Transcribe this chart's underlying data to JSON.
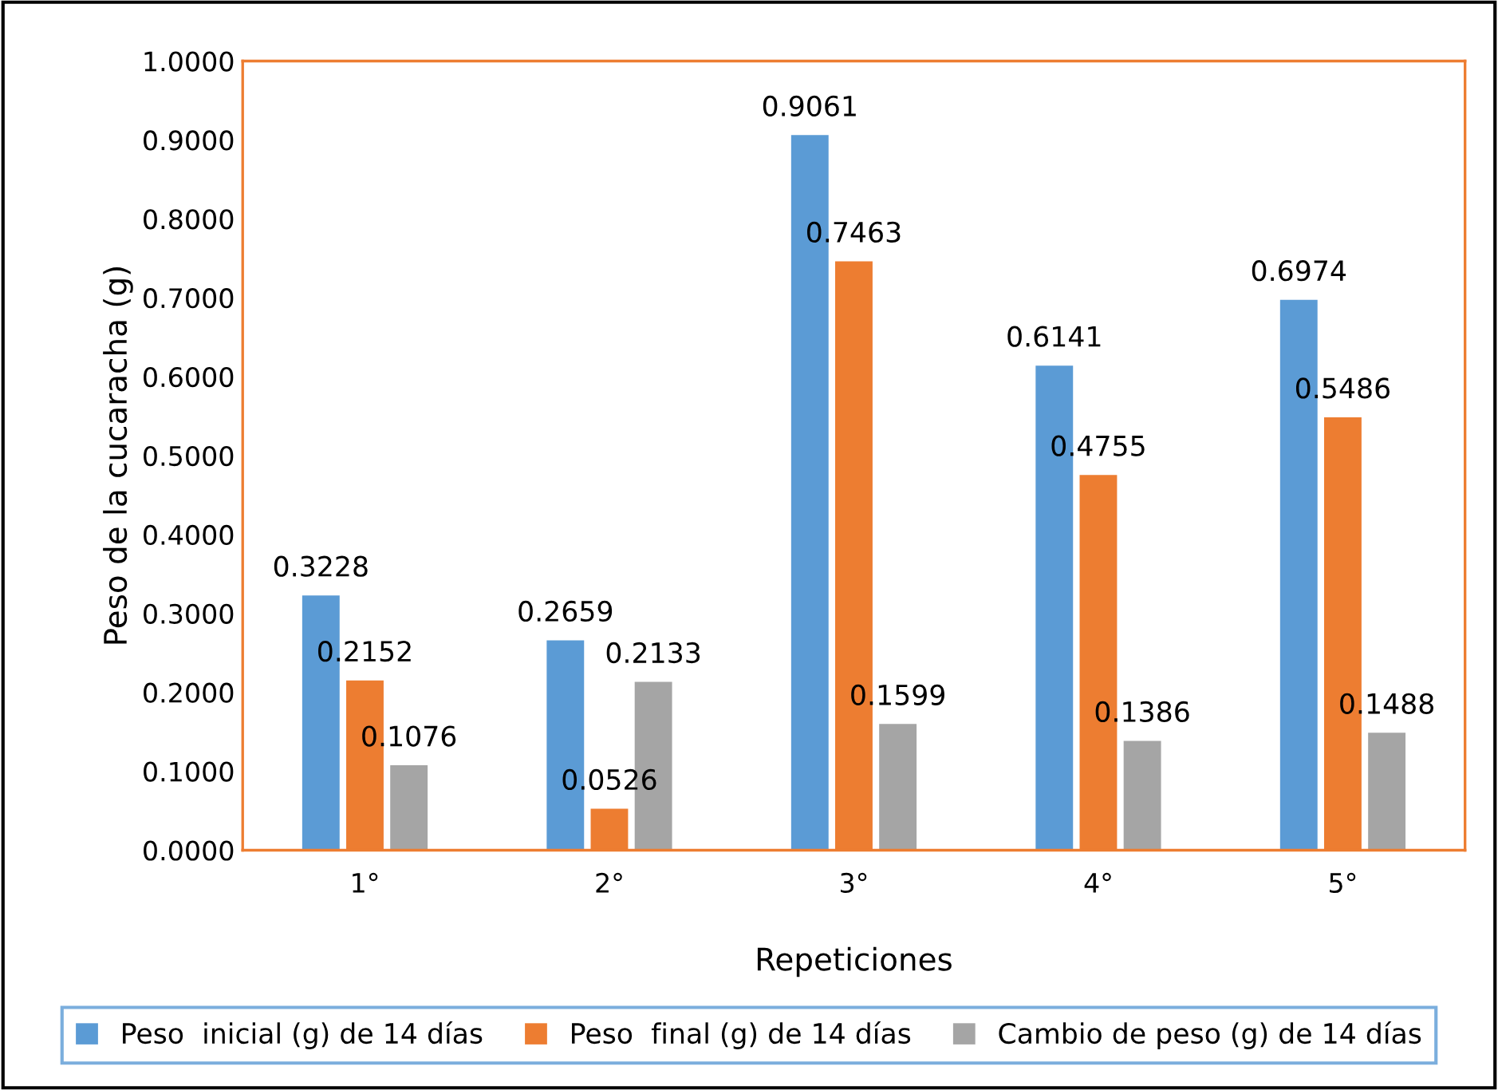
{
  "chart_data": {
    "type": "bar",
    "xlabel": "Repeticiones",
    "ylabel": "Peso de la cucaracha (g)",
    "categories": [
      "1°",
      "2°",
      "3°",
      "4°",
      "5°"
    ],
    "series": [
      {
        "name": "Peso  inicial (g) de 14 días",
        "color": "#5b9bd5",
        "values": [
          0.3228,
          0.2659,
          0.9061,
          0.6141,
          0.6974
        ]
      },
      {
        "name": "Peso  final (g) de 14 días",
        "color": "#ed7d31",
        "values": [
          0.2152,
          0.0526,
          0.7463,
          0.4755,
          0.5486
        ]
      },
      {
        "name": "Cambio de peso (g) de 14 días",
        "color": "#a5a5a5",
        "values": [
          0.1076,
          0.2133,
          0.1599,
          0.1386,
          0.1488
        ]
      }
    ],
    "ylim": [
      0,
      1
    ],
    "yticks": [
      {
        "value": 0,
        "label": "0.0000"
      },
      {
        "value": 0.1,
        "label": "0.1000"
      },
      {
        "value": 0.2,
        "label": "0.2000"
      },
      {
        "value": 0.3,
        "label": "0.3000"
      },
      {
        "value": 0.4,
        "label": "0.4000"
      },
      {
        "value": 0.5,
        "label": "0.5000"
      },
      {
        "value": 0.6,
        "label": "0.6000"
      },
      {
        "value": 0.7,
        "label": "0.7000"
      },
      {
        "value": 0.8,
        "label": "0.8000"
      },
      {
        "value": 0.9,
        "label": "0.9000"
      },
      {
        "value": 1,
        "label": "1.0000"
      }
    ],
    "data_labels": true,
    "grid": false,
    "legend": "bottom"
  }
}
